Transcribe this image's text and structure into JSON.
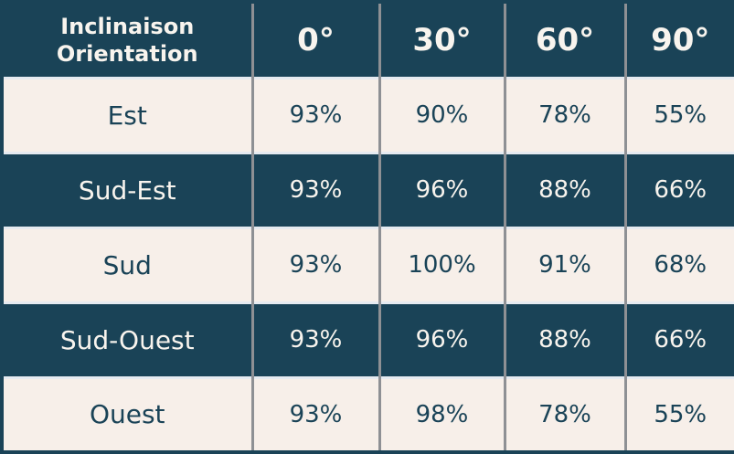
{
  "table": {
    "header": {
      "corner_line1": "Inclinaison",
      "corner_line2": "Orientation",
      "columns": [
        "0°",
        "30°",
        "60°",
        "90°"
      ]
    },
    "rows": [
      {
        "label": "Est",
        "values": [
          "93%",
          "90%",
          "78%",
          "55%"
        ]
      },
      {
        "label": "Sud-Est",
        "values": [
          "93%",
          "96%",
          "88%",
          "66%"
        ]
      },
      {
        "label": "Sud",
        "values": [
          "93%",
          "100%",
          "91%",
          "68%"
        ]
      },
      {
        "label": "Sud-Ouest",
        "values": [
          "93%",
          "96%",
          "88%",
          "66%"
        ]
      },
      {
        "label": "Ouest",
        "values": [
          "93%",
          "98%",
          "78%",
          "55%"
        ]
      }
    ],
    "colors": {
      "navy": "#1a4357",
      "cream": "#f7efe9",
      "grid_gray": "#8e9094",
      "divider_light": "#e6ebf1",
      "text_on_navy": "#f8f4ee"
    }
  },
  "chart_data": {
    "type": "table",
    "title": "Inclinaison / Orientation",
    "columns": [
      "Inclinaison\\Orientation",
      "0°",
      "30°",
      "60°",
      "90°"
    ],
    "row_labels": [
      "Est",
      "Sud-Est",
      "Sud",
      "Sud-Ouest",
      "Ouest"
    ],
    "values_percent": [
      [
        93,
        90,
        78,
        55
      ],
      [
        93,
        96,
        88,
        66
      ],
      [
        93,
        100,
        91,
        68
      ],
      [
        93,
        96,
        88,
        66
      ],
      [
        93,
        98,
        78,
        55
      ]
    ],
    "unit": "%"
  }
}
